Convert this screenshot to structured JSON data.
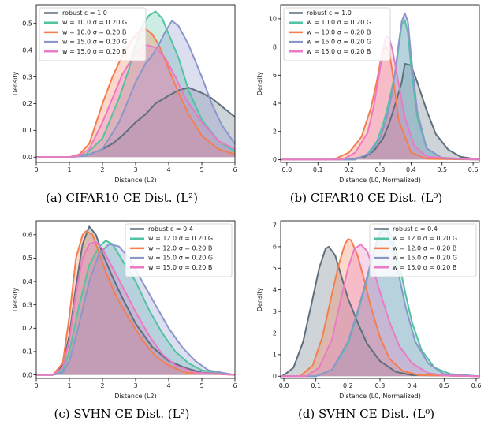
{
  "chart_data": [
    {
      "type": "area",
      "caption": "(a) CIFAR10 CE Dist. (L²)",
      "xlabel": "Distance (L2)",
      "ylabel": "Density",
      "xlim": [
        0,
        6
      ],
      "ylim": [
        -0.02,
        0.57
      ],
      "xticks": [
        "0",
        "1",
        "2",
        "3",
        "4",
        "5",
        "6"
      ],
      "xtick_values": [
        0,
        1,
        2,
        3,
        4,
        5,
        6
      ],
      "yticks": [
        "0.0",
        "0.1",
        "0.2",
        "0.3",
        "0.4",
        "0.5"
      ],
      "ytick_values": [
        0,
        0.1,
        0.2,
        0.3,
        0.4,
        0.5
      ],
      "legend_position": "top-left",
      "series": [
        {
          "name": "robust ε = 1.0",
          "color": "#5f6f7e",
          "x": [
            0,
            1,
            1.5,
            2,
            2.3,
            2.6,
            3,
            3.3,
            3.6,
            4,
            4.3,
            4.6,
            5,
            5.3,
            5.6,
            6
          ],
          "y": [
            0,
            0,
            0.005,
            0.03,
            0.05,
            0.08,
            0.13,
            0.16,
            0.2,
            0.23,
            0.25,
            0.26,
            0.24,
            0.22,
            0.19,
            0.15
          ]
        },
        {
          "name": "w = 10.0 σ = 0.20 G",
          "color": "#52c3a2",
          "x": [
            0,
            1,
            1.5,
            2,
            2.5,
            2.8,
            3,
            3.2,
            3.4,
            3.6,
            3.8,
            4,
            4.3,
            4.6,
            5,
            5.5,
            6
          ],
          "y": [
            0,
            0,
            0.01,
            0.07,
            0.22,
            0.33,
            0.42,
            0.49,
            0.53,
            0.545,
            0.52,
            0.46,
            0.37,
            0.25,
            0.14,
            0.06,
            0.02
          ]
        },
        {
          "name": "w = 10.0 σ = 0.20 B",
          "color": "#f47e4e",
          "x": [
            0,
            1,
            1.3,
            1.6,
            2,
            2.3,
            2.6,
            2.9,
            3.1,
            3.3,
            3.5,
            3.7,
            4,
            4.3,
            4.6,
            5,
            5.5,
            6
          ],
          "y": [
            0,
            0,
            0.01,
            0.05,
            0.2,
            0.3,
            0.38,
            0.44,
            0.47,
            0.48,
            0.46,
            0.42,
            0.33,
            0.24,
            0.16,
            0.08,
            0.03,
            0.01
          ]
        },
        {
          "name": "w = 15.0 σ = 0.20 G",
          "color": "#8a96cc",
          "x": [
            0,
            1,
            1.5,
            2,
            2.5,
            2.8,
            3,
            3.3,
            3.5,
            3.7,
            3.9,
            4.1,
            4.3,
            4.6,
            5,
            5.3,
            5.6,
            6
          ],
          "y": [
            0,
            0,
            0.005,
            0.03,
            0.13,
            0.22,
            0.28,
            0.35,
            0.38,
            0.42,
            0.47,
            0.51,
            0.49,
            0.42,
            0.3,
            0.2,
            0.12,
            0.05
          ]
        },
        {
          "name": "w = 15.0 σ = 0.20 B",
          "color": "#ea7ac4",
          "x": [
            0,
            1,
            1.3,
            1.6,
            2,
            2.3,
            2.6,
            3,
            3.3,
            3.6,
            3.9,
            4.2,
            4.5,
            5,
            5.5,
            6
          ],
          "y": [
            0,
            0,
            0.005,
            0.03,
            0.13,
            0.22,
            0.31,
            0.39,
            0.42,
            0.41,
            0.37,
            0.3,
            0.22,
            0.13,
            0.06,
            0.03
          ]
        }
      ]
    },
    {
      "type": "area",
      "caption": "(b) CIFAR10 CE Dist. (L⁰)",
      "xlabel": "Distance (L0, Normalized)",
      "ylabel": "Density",
      "xlim": [
        -0.02,
        0.62
      ],
      "ylim": [
        -0.2,
        11
      ],
      "xticks": [
        "0.0",
        "0.1",
        "0.2",
        "0.3",
        "0.4",
        "0.5",
        "0.6"
      ],
      "xtick_values": [
        0,
        0.1,
        0.2,
        0.3,
        0.4,
        0.5,
        0.6
      ],
      "yticks": [
        "0",
        "2",
        "4",
        "6",
        "8",
        "10"
      ],
      "ytick_values": [
        0,
        2,
        4,
        6,
        8,
        10
      ],
      "legend_position": "top-left",
      "series": [
        {
          "name": "robust ε = 1.0",
          "color": "#5f6f7e",
          "x": [
            -0.02,
            0.2,
            0.25,
            0.28,
            0.31,
            0.33,
            0.35,
            0.37,
            0.38,
            0.4,
            0.42,
            0.45,
            0.48,
            0.52,
            0.56,
            0.62
          ],
          "y": [
            0,
            0,
            0.2,
            0.6,
            1.5,
            2.6,
            4,
            5.5,
            6.8,
            6.7,
            5.5,
            3.5,
            1.8,
            0.7,
            0.2,
            0
          ]
        },
        {
          "name": "w = 10.0 σ = 0.20 G",
          "color": "#52c3a2",
          "x": [
            -0.02,
            0.22,
            0.26,
            0.29,
            0.31,
            0.33,
            0.35,
            0.36,
            0.37,
            0.38,
            0.39,
            0.4,
            0.42,
            0.45,
            0.5,
            0.62
          ],
          "y": [
            0,
            0,
            0.4,
            1.3,
            2.5,
            4.2,
            6.3,
            8,
            9.6,
            9.9,
            9,
            6.6,
            3,
            0.8,
            0.1,
            0
          ]
        },
        {
          "name": "w = 10.0 σ = 0.20 B",
          "color": "#f47e4e",
          "x": [
            -0.02,
            0.15,
            0.2,
            0.24,
            0.27,
            0.29,
            0.3,
            0.31,
            0.32,
            0.33,
            0.34,
            0.36,
            0.4,
            0.45,
            0.62
          ],
          "y": [
            0,
            0,
            0.5,
            1.6,
            3.6,
            5.6,
            6.8,
            7.8,
            8,
            7.6,
            6.2,
            2.8,
            0.5,
            0.05,
            0
          ]
        },
        {
          "name": "w = 15.0 σ = 0.20 G",
          "color": "#8a96cc",
          "x": [
            -0.02,
            0.22,
            0.27,
            0.3,
            0.32,
            0.34,
            0.35,
            0.36,
            0.37,
            0.38,
            0.39,
            0.4,
            0.42,
            0.45,
            0.5,
            0.62
          ],
          "y": [
            0,
            0,
            0.5,
            1.5,
            2.8,
            4.8,
            6.5,
            8.2,
            9.8,
            10.4,
            9.8,
            7.4,
            3.4,
            0.8,
            0.1,
            0
          ]
        },
        {
          "name": "w = 15.0 σ = 0.20 B",
          "color": "#ea7ac4",
          "x": [
            -0.02,
            0.18,
            0.22,
            0.26,
            0.28,
            0.3,
            0.31,
            0.32,
            0.33,
            0.34,
            0.36,
            0.38,
            0.41,
            0.45,
            0.62
          ],
          "y": [
            0,
            0,
            0.5,
            1.9,
            3.8,
            6.4,
            7.8,
            8.8,
            8.6,
            7.8,
            5.4,
            3,
            1,
            0.2,
            0
          ]
        }
      ]
    },
    {
      "type": "area",
      "caption": "(c) SVHN CE Dist. (L²)",
      "xlabel": "Distance (L2)",
      "ylabel": "Density",
      "xlim": [
        0,
        6
      ],
      "ylim": [
        -0.015,
        0.66
      ],
      "xticks": [
        "0",
        "1",
        "2",
        "3",
        "4",
        "5",
        "6"
      ],
      "xtick_values": [
        0,
        1,
        2,
        3,
        4,
        5,
        6
      ],
      "yticks": [
        "0.0",
        "0.1",
        "0.2",
        "0.3",
        "0.4",
        "0.5",
        "0.6"
      ],
      "ytick_values": [
        0,
        0.1,
        0.2,
        0.3,
        0.4,
        0.5,
        0.6
      ],
      "legend_position": "top-right",
      "series": [
        {
          "name": "robust ε = 0.4",
          "color": "#5f6f7e",
          "x": [
            0,
            0.5,
            0.8,
            1,
            1.2,
            1.4,
            1.6,
            1.8,
            2,
            2.3,
            2.6,
            3,
            3.5,
            4,
            4.5,
            5,
            6
          ],
          "y": [
            0,
            0,
            0.04,
            0.17,
            0.38,
            0.56,
            0.635,
            0.6,
            0.52,
            0.42,
            0.33,
            0.22,
            0.12,
            0.06,
            0.03,
            0.01,
            0
          ]
        },
        {
          "name": "w = 12.0 σ = 0.20 G",
          "color": "#52c3a2",
          "x": [
            0,
            0.5,
            0.8,
            1,
            1.3,
            1.6,
            1.9,
            2.1,
            2.3,
            2.6,
            3,
            3.4,
            3.8,
            4.2,
            4.6,
            5,
            6
          ],
          "y": [
            0,
            0,
            0.02,
            0.1,
            0.3,
            0.47,
            0.55,
            0.575,
            0.56,
            0.49,
            0.4,
            0.28,
            0.18,
            0.1,
            0.05,
            0.02,
            0
          ]
        },
        {
          "name": "w = 12.0 σ = 0.20 B",
          "color": "#f47e4e",
          "x": [
            0,
            0.5,
            0.8,
            1,
            1.2,
            1.4,
            1.5,
            1.7,
            1.9,
            2.1,
            2.4,
            2.8,
            3.2,
            3.6,
            4,
            4.5,
            6
          ],
          "y": [
            0,
            0,
            0.05,
            0.25,
            0.5,
            0.6,
            0.615,
            0.6,
            0.52,
            0.44,
            0.34,
            0.24,
            0.15,
            0.08,
            0.04,
            0.01,
            0
          ]
        },
        {
          "name": "w = 15.0 σ = 0.20 G",
          "color": "#8a96cc",
          "x": [
            0,
            0.5,
            0.8,
            1,
            1.3,
            1.6,
            1.9,
            2.2,
            2.5,
            2.8,
            3.2,
            3.6,
            4,
            4.4,
            4.8,
            5.2,
            6
          ],
          "y": [
            0,
            0,
            0.01,
            0.06,
            0.22,
            0.4,
            0.52,
            0.56,
            0.55,
            0.5,
            0.4,
            0.3,
            0.2,
            0.12,
            0.06,
            0.02,
            0
          ]
        },
        {
          "name": "w = 15.0 σ = 0.20 B",
          "color": "#ea7ac4",
          "x": [
            0,
            0.5,
            0.8,
            1,
            1.2,
            1.4,
            1.6,
            1.8,
            2,
            2.3,
            2.6,
            3,
            3.4,
            3.8,
            4.2,
            4.8,
            6
          ],
          "y": [
            0,
            0,
            0.03,
            0.15,
            0.35,
            0.5,
            0.56,
            0.57,
            0.54,
            0.46,
            0.38,
            0.27,
            0.17,
            0.09,
            0.04,
            0.01,
            0
          ]
        }
      ]
    },
    {
      "type": "area",
      "caption": "(d) SVHN CE Dist. (L⁰)",
      "xlabel": "Distance (L0, Normalized)",
      "ylabel": "Density",
      "xlim": [
        -0.01,
        0.61
      ],
      "ylim": [
        -0.1,
        7.2
      ],
      "xticks": [
        "0.0",
        "0.1",
        "0.2",
        "0.3",
        "0.4",
        "0.5",
        "0.6"
      ],
      "xtick_values": [
        0,
        0.1,
        0.2,
        0.3,
        0.4,
        0.5,
        0.6
      ],
      "yticks": [
        "0",
        "1",
        "2",
        "3",
        "4",
        "5",
        "6",
        "7"
      ],
      "ytick_values": [
        0,
        1,
        2,
        3,
        4,
        5,
        6,
        7
      ],
      "legend_position": "top-right",
      "series": [
        {
          "name": "robust ε = 0.4",
          "color": "#5f6f7e",
          "x": [
            -0.01,
            0,
            0.03,
            0.06,
            0.09,
            0.11,
            0.13,
            0.14,
            0.16,
            0.18,
            0.2,
            0.23,
            0.26,
            0.3,
            0.35,
            0.4,
            0.61
          ],
          "y": [
            0,
            0.05,
            0.4,
            1.6,
            3.6,
            5,
            5.9,
            6,
            5.6,
            4.6,
            3.6,
            2.5,
            1.5,
            0.7,
            0.2,
            0.05,
            0
          ]
        },
        {
          "name": "w = 12.0 σ = 0.20 G",
          "color": "#52c3a2",
          "x": [
            -0.01,
            0.1,
            0.15,
            0.2,
            0.23,
            0.26,
            0.28,
            0.3,
            0.32,
            0.34,
            0.36,
            0.38,
            0.4,
            0.43,
            0.47,
            0.52,
            0.61
          ],
          "y": [
            0,
            0,
            0.3,
            1.5,
            2.9,
            4.5,
            5.7,
            6.6,
            6.85,
            6.4,
            5.2,
            3.8,
            2.5,
            1.2,
            0.4,
            0.1,
            0
          ]
        },
        {
          "name": "w = 12.0 σ = 0.20 B",
          "color": "#f47e4e",
          "x": [
            -0.01,
            0.05,
            0.09,
            0.12,
            0.15,
            0.17,
            0.19,
            0.2,
            0.21,
            0.23,
            0.25,
            0.27,
            0.3,
            0.33,
            0.37,
            0.42,
            0.61
          ],
          "y": [
            0,
            0,
            0.5,
            1.8,
            3.8,
            5.1,
            6.1,
            6.35,
            6.3,
            5.6,
            4.5,
            3.3,
            1.8,
            0.8,
            0.25,
            0.05,
            0
          ]
        },
        {
          "name": "w = 15.0 σ = 0.20 G",
          "color": "#8a96cc",
          "x": [
            -0.01,
            0.1,
            0.15,
            0.2,
            0.23,
            0.26,
            0.28,
            0.3,
            0.31,
            0.32,
            0.34,
            0.36,
            0.38,
            0.41,
            0.45,
            0.5,
            0.61
          ],
          "y": [
            0,
            0,
            0.3,
            1.6,
            3,
            4.6,
            5.8,
            6.7,
            6.85,
            6.8,
            6,
            4.6,
            3.2,
            1.6,
            0.6,
            0.1,
            0
          ]
        },
        {
          "name": "w = 15.0 σ = 0.20 B",
          "color": "#ea7ac4",
          "x": [
            -0.01,
            0.07,
            0.11,
            0.15,
            0.18,
            0.2,
            0.22,
            0.24,
            0.26,
            0.28,
            0.3,
            0.33,
            0.36,
            0.4,
            0.45,
            0.5,
            0.61
          ],
          "y": [
            0,
            0,
            0.4,
            1.7,
            3.7,
            5,
            5.9,
            6.1,
            5.8,
            4.9,
            3.9,
            2.5,
            1.4,
            0.6,
            0.15,
            0.03,
            0
          ]
        }
      ]
    }
  ]
}
